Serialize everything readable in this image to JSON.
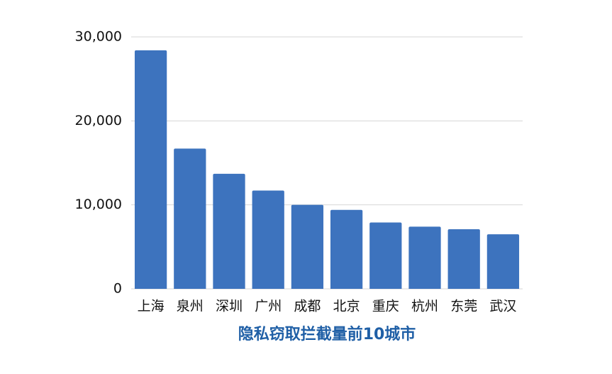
{
  "chart_data": {
    "type": "bar",
    "title": "隐私窃取拦截量前10城市",
    "categories": [
      "上海",
      "泉州",
      "深圳",
      "广州",
      "成都",
      "北京",
      "重庆",
      "杭州",
      "东莞",
      "武汉"
    ],
    "values": [
      28400,
      16700,
      13700,
      11700,
      10000,
      9400,
      7900,
      7400,
      7100,
      6500
    ],
    "color": "#3d73be",
    "ylim": [
      0,
      30000
    ],
    "yticks": [
      0,
      {
        "value": 10000,
        "label": "10,000"
      },
      {
        "value": 20000,
        "label": "20,000"
      },
      {
        "value": 30000,
        "label": "30,000"
      }
    ],
    "grid": true
  }
}
